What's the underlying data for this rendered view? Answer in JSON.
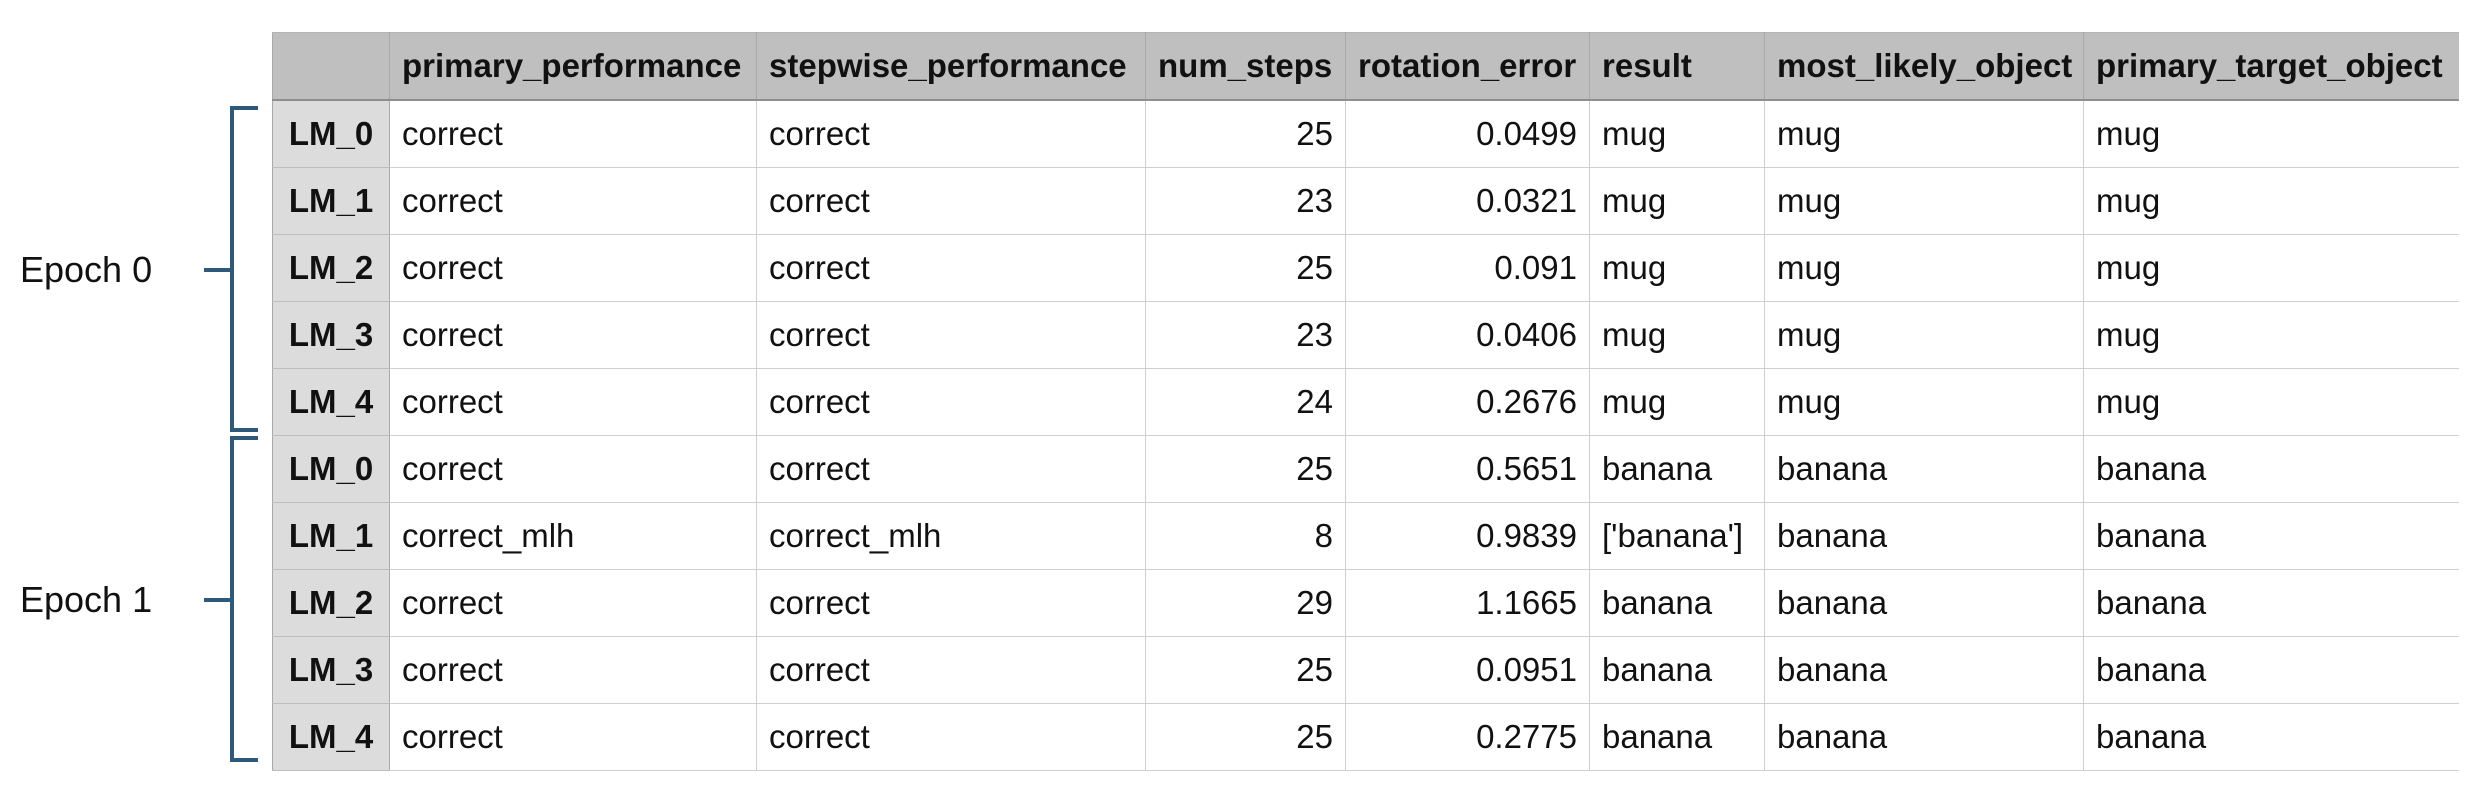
{
  "epochs": [
    {
      "label": "Epoch 0"
    },
    {
      "label": "Epoch 1"
    }
  ],
  "table": {
    "columns": [
      "",
      "primary_performance",
      "stepwise_performance",
      "num_steps",
      "rotation_error",
      "result",
      "most_likely_object",
      "primary_target_object"
    ],
    "rows": [
      [
        "LM_0",
        "correct",
        "correct",
        "25",
        "0.0499",
        "mug",
        "mug",
        "mug"
      ],
      [
        "LM_1",
        "correct",
        "correct",
        "23",
        "0.0321",
        "mug",
        "mug",
        "mug"
      ],
      [
        "LM_2",
        "correct",
        "correct",
        "25",
        "0.091",
        "mug",
        "mug",
        "mug"
      ],
      [
        "LM_3",
        "correct",
        "correct",
        "23",
        "0.0406",
        "mug",
        "mug",
        "mug"
      ],
      [
        "LM_4",
        "correct",
        "correct",
        "24",
        "0.2676",
        "mug",
        "mug",
        "mug"
      ],
      [
        "LM_0",
        "correct",
        "correct",
        "25",
        "0.5651",
        "banana",
        "banana",
        "banana"
      ],
      [
        "LM_1",
        "correct_mlh",
        "correct_mlh",
        "8",
        "0.9839",
        "['banana']",
        "banana",
        "banana"
      ],
      [
        "LM_2",
        "correct",
        "correct",
        "29",
        "1.1665",
        "banana",
        "banana",
        "banana"
      ],
      [
        "LM_3",
        "correct",
        "correct",
        "25",
        "0.0951",
        "banana",
        "banana",
        "banana"
      ],
      [
        "LM_4",
        "correct",
        "correct",
        "25",
        "0.2775",
        "banana",
        "banana",
        "banana"
      ]
    ]
  },
  "colors": {
    "header_bg": "#bfbfbf",
    "row_header_bg": "#dcdcdc",
    "bracket": "#2d5a7b"
  }
}
